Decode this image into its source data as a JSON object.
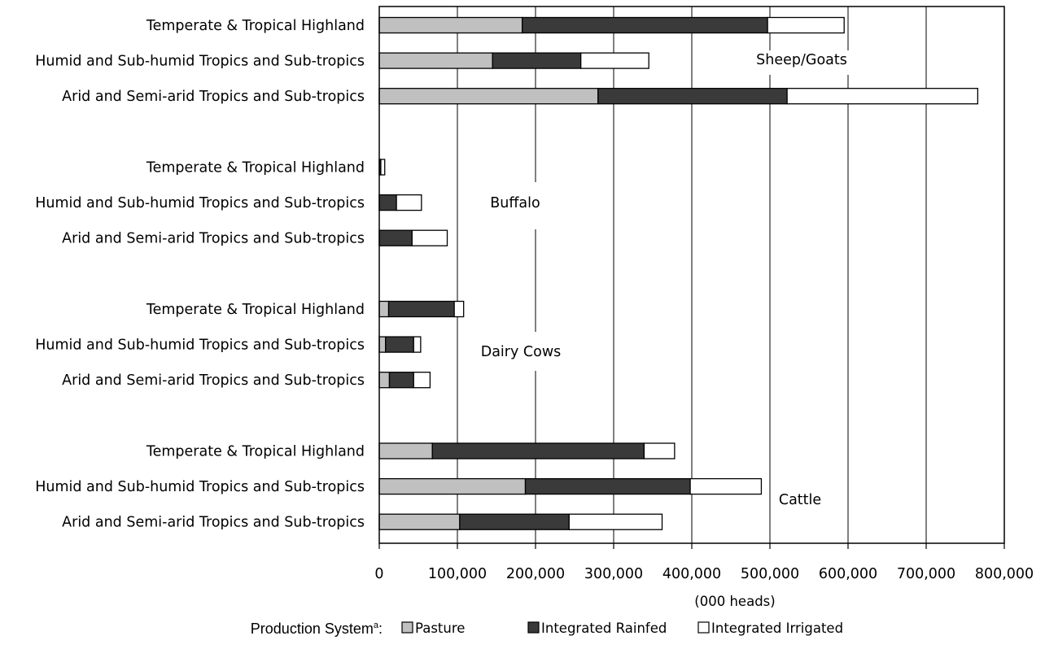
{
  "chart_data": {
    "type": "bar",
    "orientation": "horizontal",
    "stacked": true,
    "xlabel": "(000 heads)",
    "xlim": [
      0,
      800000
    ],
    "xticks": [
      0,
      100000,
      200000,
      300000,
      400000,
      500000,
      600000,
      700000,
      800000
    ],
    "xtick_labels": [
      "0",
      "100,000",
      "200,000",
      "300,000",
      "400,000",
      "500,000",
      "600,000",
      "700,000",
      "800,000"
    ],
    "grid": "vertical",
    "legend": {
      "title": "Production System",
      "title_superscript": "a",
      "title_suffix": ":",
      "position": "bottom"
    },
    "series": [
      {
        "name": "Pasture",
        "color": "#c0c0c0"
      },
      {
        "name": "Integrated Rainfed",
        "color": "#3a3a3a"
      },
      {
        "name": "Integrated Irrigated",
        "color": "#ffffff"
      }
    ],
    "groups": [
      {
        "name": "Sheep/Goats",
        "rows": [
          {
            "label": "Temperate & Tropical Highland",
            "values": [
              183000,
              314000,
              98000
            ]
          },
          {
            "label": "Humid and Sub-humid Tropics and Sub-tropics",
            "values": [
              145000,
              113000,
              87000
            ]
          },
          {
            "label": "Arid and Semi-arid Tropics and Sub-tropics",
            "values": [
              280000,
              242000,
              244000
            ]
          }
        ]
      },
      {
        "name": "Buffalo",
        "rows": [
          {
            "label": "Temperate & Tropical Highland",
            "values": [
              0,
              2000,
              5000
            ]
          },
          {
            "label": "Humid and Sub-humid Tropics and Sub-tropics",
            "values": [
              0,
              22000,
              32000
            ]
          },
          {
            "label": "Arid and Semi-arid Tropics and Sub-tropics",
            "values": [
              0,
              42000,
              45000
            ]
          }
        ]
      },
      {
        "name": "Dairy Cows",
        "rows": [
          {
            "label": "Temperate & Tropical Highland",
            "values": [
              12000,
              84000,
              12000
            ]
          },
          {
            "label": "Humid and Sub-humid Tropics and Sub-tropics",
            "values": [
              8000,
              36000,
              9000
            ]
          },
          {
            "label": "Arid and Semi-arid Tropics and Sub-tropics",
            "values": [
              13000,
              31000,
              21000
            ]
          }
        ]
      },
      {
        "name": "Cattle",
        "rows": [
          {
            "label": "Temperate & Tropical Highland",
            "values": [
              68000,
              271000,
              39000
            ]
          },
          {
            "label": "Humid and Sub-humid Tropics and Sub-tropics",
            "values": [
              187000,
              211000,
              91000
            ]
          },
          {
            "label": "Arid and Semi-arid Tropics and Sub-tropics",
            "values": [
              103000,
              140000,
              119000
            ]
          }
        ]
      }
    ]
  }
}
